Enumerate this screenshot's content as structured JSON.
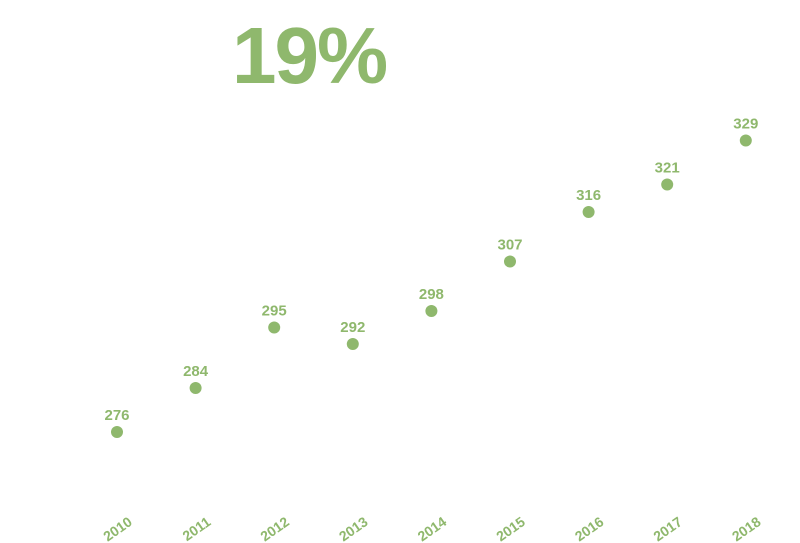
{
  "headline": {
    "text": "19%"
  },
  "chart_data": {
    "type": "scatter",
    "title": "",
    "xlabel": "",
    "ylabel": "",
    "x": [
      "2010",
      "2011",
      "2012",
      "2013",
      "2014",
      "2015",
      "2016",
      "2017",
      "2018"
    ],
    "values": [
      276,
      284,
      295,
      292,
      298,
      307,
      316,
      321,
      329
    ],
    "ylim": [
      260,
      340
    ],
    "grid": false,
    "color": "#8fb86d",
    "data_labels": true
  }
}
